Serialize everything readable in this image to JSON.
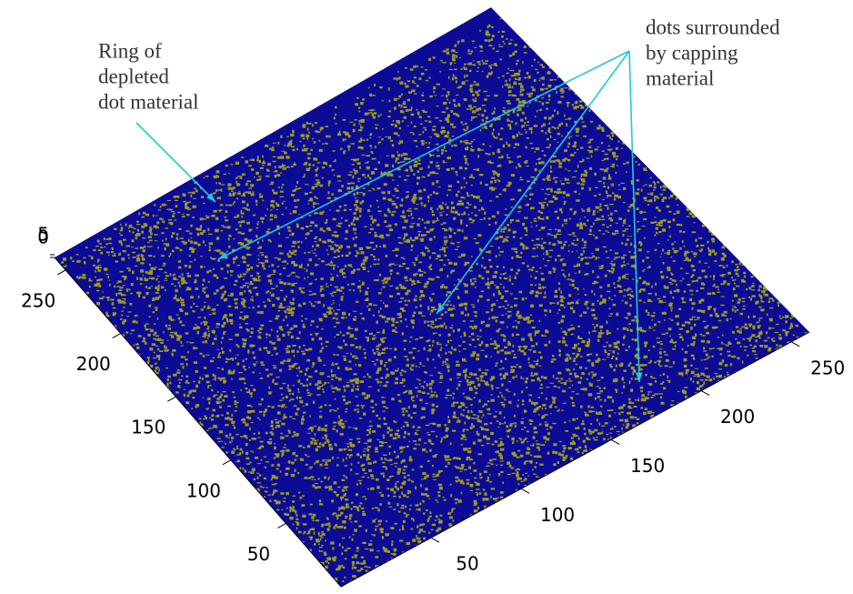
{
  "chart_data": {
    "type": "surface",
    "xlim": [
      0,
      260
    ],
    "xticks": [
      50,
      100,
      150,
      200,
      250
    ],
    "ylim": [
      0,
      260
    ],
    "yticks": [
      50,
      100,
      150,
      200,
      250
    ],
    "zlim": [
      0,
      5
    ],
    "zticks": [
      0,
      5
    ],
    "surface_color": "#0b0b96",
    "speckle_color": "#9c9a1e",
    "annotation_color": "#22c8d8",
    "annotations": [
      {
        "lines": [
          "Ring of",
          "depleted",
          "dot material"
        ]
      },
      {
        "lines": [
          "dots surrounded",
          "by capping",
          "material"
        ]
      }
    ]
  }
}
